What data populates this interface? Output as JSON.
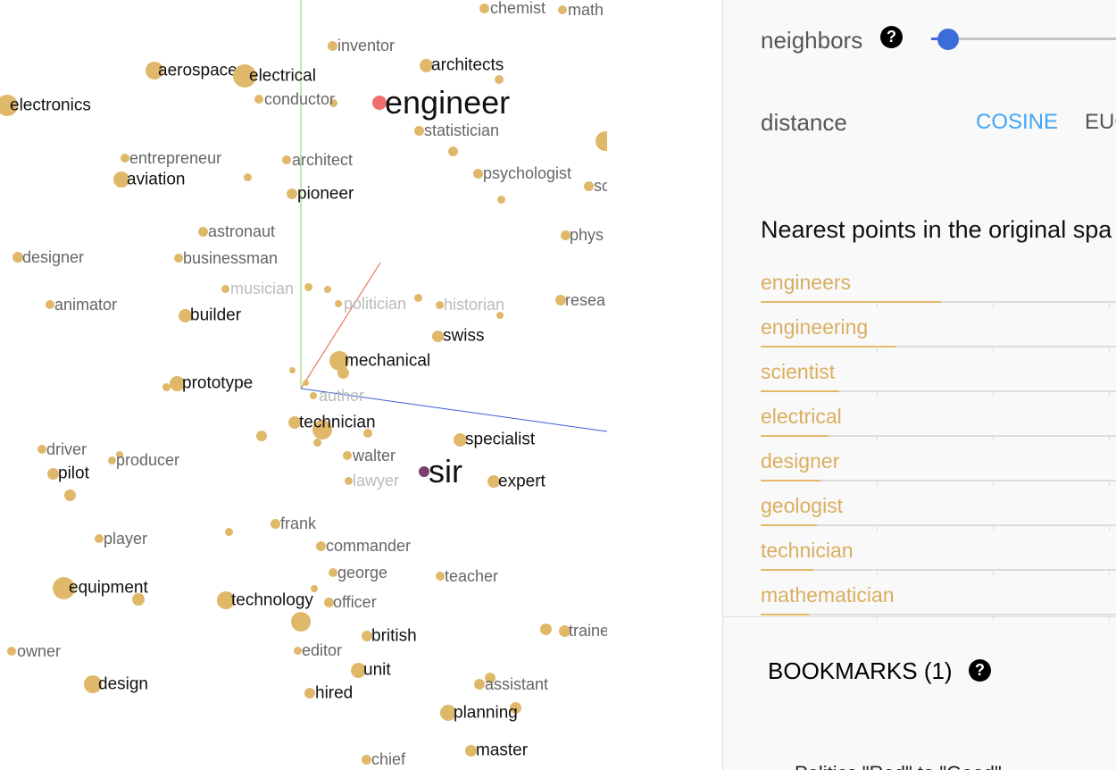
{
  "projector": {
    "points": [
      {
        "word": "chemist",
        "tone": "grey"
      },
      {
        "word": "math",
        "tone": "grey"
      },
      {
        "word": "inventor",
        "tone": "grey"
      },
      {
        "word": "architects",
        "tone": "dark"
      },
      {
        "word": "aerospace",
        "tone": "dark"
      },
      {
        "word": "electrical",
        "tone": "dark"
      },
      {
        "word": "conductor",
        "tone": "grey"
      },
      {
        "word": "engineer",
        "tone": "big"
      },
      {
        "word": "electronics",
        "tone": "dark"
      },
      {
        "word": "statistician",
        "tone": "grey"
      },
      {
        "word": "entrepreneur",
        "tone": "grey"
      },
      {
        "word": "architect",
        "tone": "grey"
      },
      {
        "word": "aviation",
        "tone": "dark"
      },
      {
        "word": "psychologist",
        "tone": "grey"
      },
      {
        "word": "pioneer",
        "tone": "dark"
      },
      {
        "word": "sc",
        "tone": "grey"
      },
      {
        "word": "astronaut",
        "tone": "grey"
      },
      {
        "word": "phys",
        "tone": "grey"
      },
      {
        "word": "designer",
        "tone": "grey"
      },
      {
        "word": "businessman",
        "tone": "grey"
      },
      {
        "word": "musician",
        "tone": "light"
      },
      {
        "word": "animator",
        "tone": "grey"
      },
      {
        "word": "builder",
        "tone": "dark"
      },
      {
        "word": "politician",
        "tone": "light"
      },
      {
        "word": "historian",
        "tone": "light"
      },
      {
        "word": "resea",
        "tone": "grey"
      },
      {
        "word": "swiss",
        "tone": "dark"
      },
      {
        "word": "mechanical",
        "tone": "dark"
      },
      {
        "word": "prototype",
        "tone": "dark"
      },
      {
        "word": "author",
        "tone": "light"
      },
      {
        "word": "technician",
        "tone": "dark"
      },
      {
        "word": "specialist",
        "tone": "dark"
      },
      {
        "word": "driver",
        "tone": "grey"
      },
      {
        "word": "producer",
        "tone": "grey"
      },
      {
        "word": "walter",
        "tone": "grey"
      },
      {
        "word": "pilot",
        "tone": "dark"
      },
      {
        "word": "sir",
        "tone": "big"
      },
      {
        "word": "lawyer",
        "tone": "light"
      },
      {
        "word": "expert",
        "tone": "dark"
      },
      {
        "word": "frank",
        "tone": "grey"
      },
      {
        "word": "player",
        "tone": "grey"
      },
      {
        "word": "commander",
        "tone": "grey"
      },
      {
        "word": "george",
        "tone": "grey"
      },
      {
        "word": "teacher",
        "tone": "grey"
      },
      {
        "word": "equipment",
        "tone": "dark"
      },
      {
        "word": "technology",
        "tone": "dark"
      },
      {
        "word": "officer",
        "tone": "grey"
      },
      {
        "word": "traine",
        "tone": "grey"
      },
      {
        "word": "british",
        "tone": "dark"
      },
      {
        "word": "owner",
        "tone": "grey"
      },
      {
        "word": "editor",
        "tone": "grey"
      },
      {
        "word": "unit",
        "tone": "dark"
      },
      {
        "word": "design",
        "tone": "dark"
      },
      {
        "word": "hired",
        "tone": "dark"
      },
      {
        "word": "assistant",
        "tone": "grey"
      },
      {
        "word": "planning",
        "tone": "dark"
      },
      {
        "word": "master",
        "tone": "dark"
      },
      {
        "word": "chief",
        "tone": "grey"
      }
    ],
    "colors": {
      "point": "#e0b86a",
      "selected": "#ef6f6c",
      "sir": "#7a3f6e",
      "axis_x": "#3b5bdb",
      "axis_y": "#8cd162",
      "axis_z": "#e0633a"
    }
  },
  "panel": {
    "neighbors_label": "neighbors",
    "neighbors_value": 0.1,
    "distance_label": "distance",
    "distance_options": [
      "COSINE",
      "EUC"
    ],
    "distance_selected": "COSINE",
    "nearest_title": "Nearest points in the original spa",
    "nearest": [
      {
        "word": "engineers",
        "score": 0.48
      },
      {
        "word": "engineering",
        "score": 0.36
      },
      {
        "word": "scientist",
        "score": 0.21
      },
      {
        "word": "electrical",
        "score": 0.18
      },
      {
        "word": "designer",
        "score": 0.16
      },
      {
        "word": "geologist",
        "score": 0.15
      },
      {
        "word": "technician",
        "score": 0.14
      },
      {
        "word": "mathematician",
        "score": 0.13
      }
    ],
    "bookmarks_title": "BOOKMARKS (1)",
    "bookmark_item": "Politics \"Red\" to \"Good\"",
    "help_icon": "question-circle-icon"
  }
}
